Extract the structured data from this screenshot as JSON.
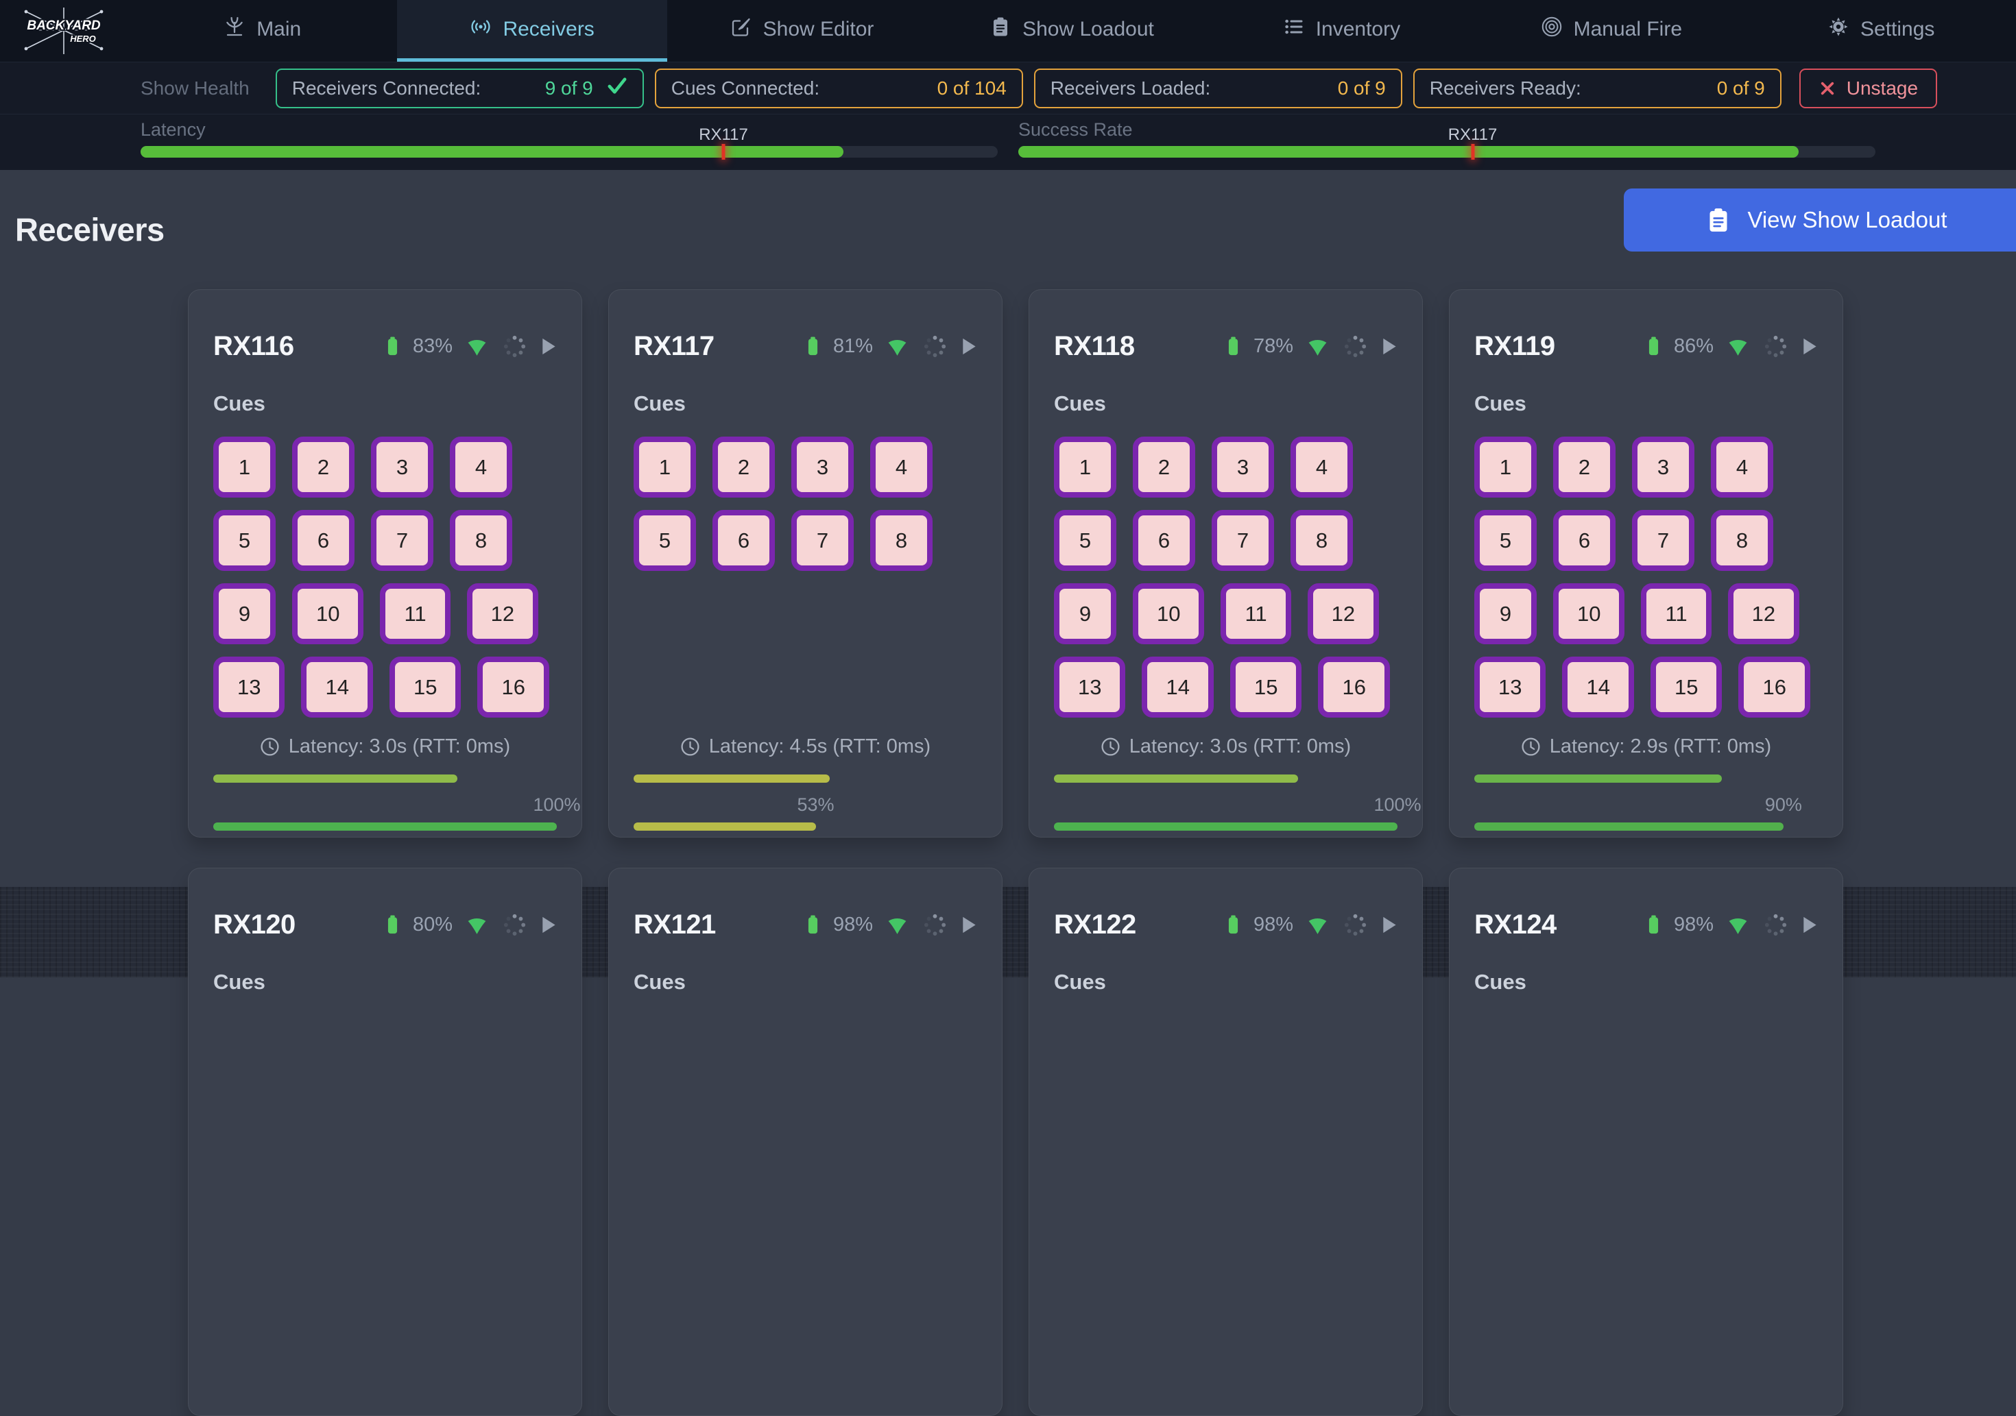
{
  "nav": {
    "logo": {
      "line1": "BACKYARD",
      "line2": "HERO"
    },
    "items": [
      {
        "label": "Main",
        "icon": "fountain-icon",
        "active": false
      },
      {
        "label": "Receivers",
        "icon": "broadcast-icon",
        "active": true
      },
      {
        "label": "Show Editor",
        "icon": "edit-icon",
        "active": false
      },
      {
        "label": "Show Loadout",
        "icon": "clipboard-icon",
        "active": false
      },
      {
        "label": "Inventory",
        "icon": "list-icon",
        "active": false
      },
      {
        "label": "Manual Fire",
        "icon": "target-icon",
        "active": false
      },
      {
        "label": "Settings",
        "icon": "gear-icon",
        "active": false
      }
    ]
  },
  "status_bar": {
    "health_label": "Show Health",
    "boxes": [
      {
        "label": "Receivers Connected:",
        "value": "9 of 9",
        "state": "ok",
        "icon": "check-icon"
      },
      {
        "label": "Cues Connected:",
        "value": "0 of 104",
        "state": "warn"
      },
      {
        "label": "Receivers Loaded:",
        "value": "0 of 9",
        "state": "warn"
      },
      {
        "label": "Receivers Ready:",
        "value": "0 of 9",
        "state": "warn"
      }
    ],
    "unstage_label": "Unstage",
    "unstage_icon": "x-icon"
  },
  "meters": {
    "latency": {
      "label": "Latency",
      "fill_pct": 82,
      "marker_pct": 68,
      "marker_label": "RX117"
    },
    "success": {
      "label": "Success Rate",
      "fill_pct": 91,
      "marker_pct": 53,
      "marker_label": "RX117"
    }
  },
  "page": {
    "title": "Receivers",
    "loadout_button": "View Show Loadout",
    "cues_heading": "Cues"
  },
  "receivers": [
    {
      "name": "RX116",
      "battery": "83%",
      "cues": [
        "1",
        "2",
        "3",
        "4",
        "5",
        "6",
        "7",
        "8",
        "9",
        "10",
        "11",
        "12",
        "13",
        "14",
        "15",
        "16"
      ],
      "latency_text": "Latency: 3.0s (RTT: 0ms)",
      "latency_bar_pct": 71,
      "latency_bar_color": "#8fbb4a",
      "success_pct_label": "100%",
      "success_bar_pct": 100,
      "success_bar_color": "#4db24f"
    },
    {
      "name": "RX117",
      "battery": "81%",
      "cues": [
        "1",
        "2",
        "3",
        "4",
        "5",
        "6",
        "7",
        "8"
      ],
      "latency_text": "Latency: 4.5s (RTT: 0ms)",
      "latency_bar_pct": 57,
      "latency_bar_color": "#b7bc49",
      "success_pct_label": "53%",
      "success_bar_pct": 53,
      "success_bar_color": "#b7bc49"
    },
    {
      "name": "RX118",
      "battery": "78%",
      "cues": [
        "1",
        "2",
        "3",
        "4",
        "5",
        "6",
        "7",
        "8",
        "9",
        "10",
        "11",
        "12",
        "13",
        "14",
        "15",
        "16"
      ],
      "latency_text": "Latency: 3.0s (RTT: 0ms)",
      "latency_bar_pct": 71,
      "latency_bar_color": "#8fbb4a",
      "success_pct_label": "100%",
      "success_bar_pct": 100,
      "success_bar_color": "#4db24f"
    },
    {
      "name": "RX119",
      "battery": "86%",
      "cues": [
        "1",
        "2",
        "3",
        "4",
        "5",
        "6",
        "7",
        "8",
        "9",
        "10",
        "11",
        "12",
        "13",
        "14",
        "15",
        "16"
      ],
      "latency_text": "Latency: 2.9s (RTT: 0ms)",
      "latency_bar_pct": 72,
      "latency_bar_color": "#6ab54a",
      "success_pct_label": "90%",
      "success_bar_pct": 90,
      "success_bar_color": "#52b04c"
    },
    {
      "name": "RX120",
      "battery": "80%",
      "cues": []
    },
    {
      "name": "RX121",
      "battery": "98%",
      "cues": []
    },
    {
      "name": "RX122",
      "battery": "98%",
      "cues": []
    },
    {
      "name": "RX124",
      "battery": "98%",
      "cues": []
    }
  ],
  "colors": {
    "bg_nav": "#0f141e",
    "bg_bar": "#151a26",
    "bg_main": "#353b48",
    "bg_card": "#3a404d",
    "bg_dark": "#262b37",
    "tab_cyan": "#5fbcd9",
    "green_ok": "#35c08a",
    "warn": "#e3a23c",
    "warn_text": "#f3b94e",
    "danger": "#d84f5c",
    "accent_blue": "#4169e1",
    "meter_green": "#57bd3a",
    "marker_red": "#e23325",
    "cue_bg": "#f7d6d6",
    "cue_border": "#7b26ae",
    "battery_green": "#57cd60",
    "wifi_green": "#44c565"
  }
}
